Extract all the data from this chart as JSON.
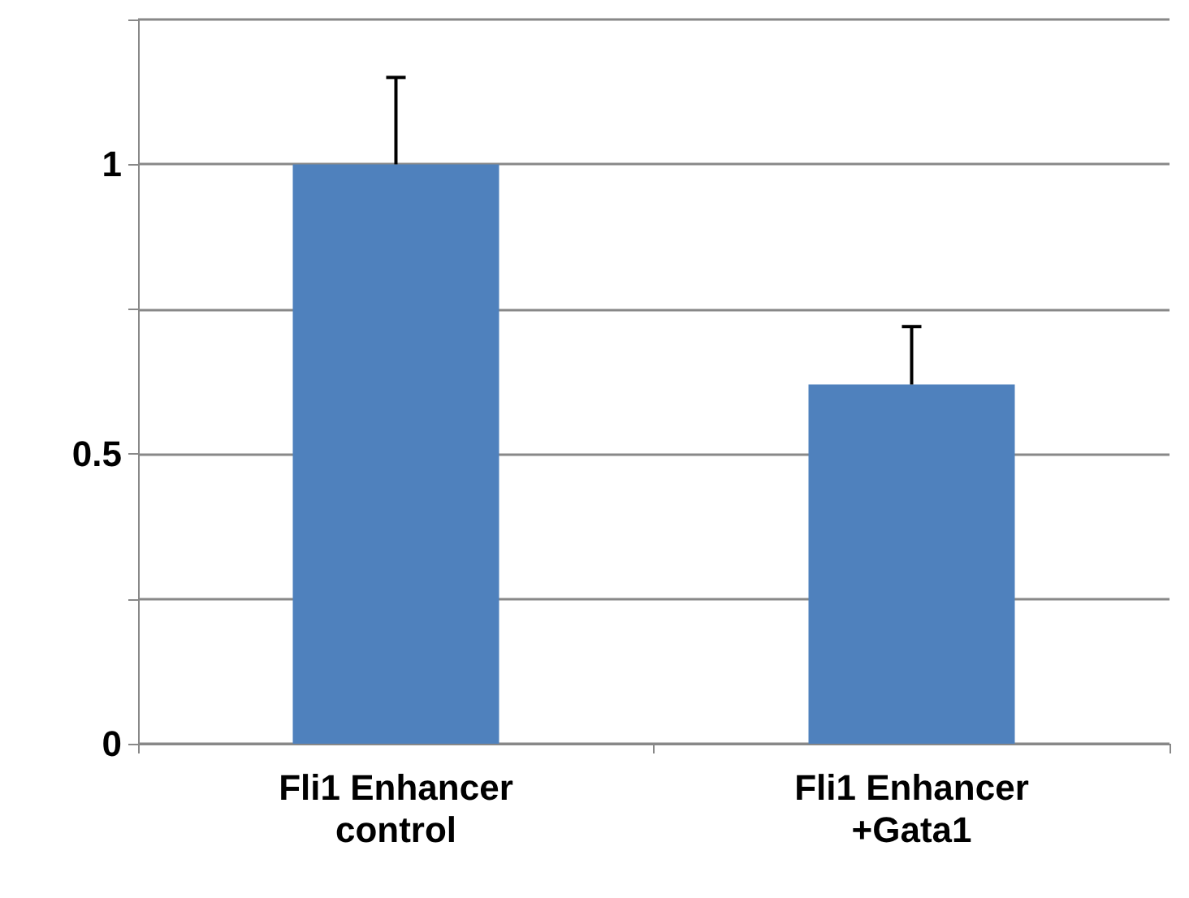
{
  "chart_data": {
    "type": "bar",
    "categories": [
      "Fli1 Enhancer\ncontrol",
      "Fli1 Enhancer\n+Gata1"
    ],
    "values": [
      1,
      0.62
    ],
    "color": "#4f81bd",
    "errors": [
      [
        1,
        1.15
      ],
      [
        0.62,
        0.72
      ]
    ],
    "ylim": [
      0,
      1.25
    ],
    "yticks": [
      0,
      {
        "value": 0.25,
        "label": null
      },
      0.5,
      {
        "value": 0.75,
        "label": null
      },
      1,
      {
        "value": 1.25,
        "label": null
      }
    ],
    "grid": "y"
  }
}
